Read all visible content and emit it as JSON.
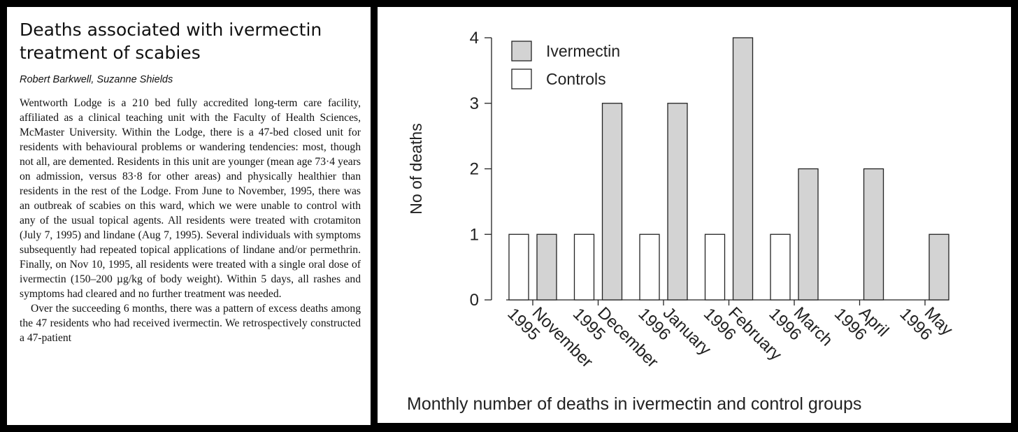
{
  "article": {
    "title_line1": "Deaths associated with ivermectin",
    "title_line2": "treatment of scabies",
    "authors": "Robert Barkwell, Suzanne Shields",
    "paragraph1": "Wentworth Lodge is a 210 bed fully accredited long-term care facility, affiliated as a clinical teaching unit with the Faculty of Health Sciences, McMaster University. Within the Lodge, there is a 47-bed closed unit for residents with behavioural problems or wandering tendencies: most, though not all, are demented. Residents in this unit are younger (mean age 73·4 years on admission, versus 83·8 for other areas) and physically healthier than residents in the rest of the Lodge. From June to November, 1995, there was an outbreak of scabies on this ward, which we were unable to control with any of the usual topical agents. All residents were treated with crotamiton (July 7, 1995) and lindane (Aug 7, 1995). Several individuals with symptoms subsequently had repeated topical applications of lindane and/or permethrin. Finally, on Nov 10, 1995, all residents were treated with a single oral dose of ivermectin (150–200 µg/kg of body weight). Within 5 days, all rashes and symptoms had cleared and no further treatment was needed.",
    "paragraph2": "Over the succeeding 6 months, there was a pattern of excess deaths among the 47 residents who had received ivermectin. We retrospectively constructed a 47-patient"
  },
  "chart_data": {
    "type": "bar",
    "categories": [
      [
        "November",
        "1995"
      ],
      [
        "December",
        "1995"
      ],
      [
        "January",
        "1996"
      ],
      [
        "February",
        "1996"
      ],
      [
        "March",
        "1996"
      ],
      [
        "April",
        "1996"
      ],
      [
        "May",
        "1996"
      ]
    ],
    "series": [
      {
        "name": "Controls",
        "values": [
          1,
          1,
          1,
          1,
          1,
          0,
          0
        ],
        "color": "#ffffff"
      },
      {
        "name": "Ivermectin",
        "values": [
          1,
          3,
          3,
          4,
          2,
          2,
          1
        ],
        "color": "#d3d3d3"
      }
    ],
    "legend_order": [
      "Ivermectin",
      "Controls"
    ],
    "ylabel": "No of deaths",
    "yticks": [
      0,
      1,
      2,
      3,
      4
    ],
    "ylim": [
      0,
      4
    ],
    "caption": "Monthly number of deaths in ivermectin and control groups",
    "grid": false,
    "legend_position": "top-left"
  }
}
